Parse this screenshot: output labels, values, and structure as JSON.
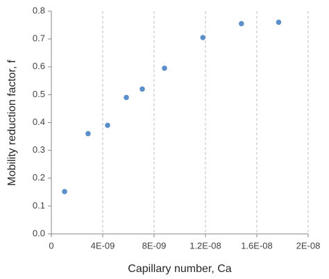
{
  "chart_data": {
    "type": "scatter",
    "x_label": "Capillary number, Ca",
    "y_label": "Mobility reduction factor, f",
    "series": [
      {
        "color": "#5b8fc9",
        "x": [
          1.03e-09,
          2.86e-09,
          4.38e-09,
          5.84e-09,
          7.08e-09,
          8.81e-09,
          1.18e-08,
          1.48e-08,
          1.77e-08
        ],
        "values": [
          0.152,
          0.36,
          0.39,
          0.49,
          0.52,
          0.595,
          0.705,
          0.755,
          0.76
        ]
      }
    ],
    "xlim": [
      0,
      2e-08
    ],
    "xticks": [
      0,
      {
        "value": 4e-09,
        "label": "4E-09"
      },
      {
        "value": 8e-09,
        "label": "8E-09"
      },
      {
        "value": 1.2e-08,
        "label": "1.2E-08"
      },
      {
        "value": 1.6e-08,
        "label": "1.6E-08"
      },
      {
        "value": 2e-08,
        "label": "2E-08"
      }
    ],
    "ylim": [
      0,
      0.8
    ],
    "yticks": [
      {
        "value": 0,
        "label": "0.0"
      },
      0.1,
      0.2,
      0.3,
      0.4,
      0.5,
      0.6,
      0.7,
      0.8
    ],
    "x_grid": true
  }
}
